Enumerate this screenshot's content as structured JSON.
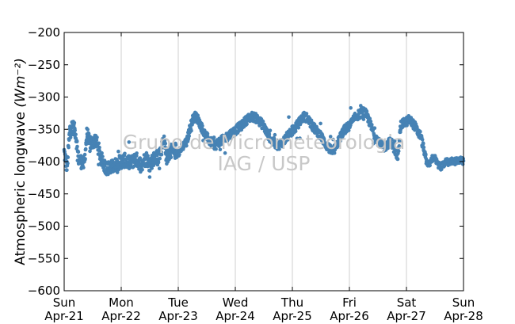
{
  "chart_data": {
    "type": "scatter",
    "ylabel": "Atmospheric longwave (Wm⁻²)",
    "ylabel_text": "Atmospheric longwave ",
    "ylabel_unit": "(Wm⁻²)",
    "watermark": [
      "Grupo de Micrometeorologia",
      "IAG / USP"
    ],
    "ylim": [
      -600,
      -200
    ],
    "xlim": [
      0,
      7
    ],
    "y_ticks": [
      -200,
      -250,
      -300,
      -350,
      -400,
      -450,
      -500,
      -550,
      -600
    ],
    "x_ticks": [
      {
        "x": 0,
        "day": "Sun",
        "date": "Apr-21"
      },
      {
        "x": 1,
        "day": "Mon",
        "date": "Apr-22"
      },
      {
        "x": 2,
        "day": "Tue",
        "date": "Apr-23"
      },
      {
        "x": 3,
        "day": "Wed",
        "date": "Apr-24"
      },
      {
        "x": 4,
        "day": "Thu",
        "date": "Apr-25"
      },
      {
        "x": 5,
        "day": "Fri",
        "date": "Apr-26"
      },
      {
        "x": 6,
        "day": "Sat",
        "date": "Apr-27"
      },
      {
        "x": 7,
        "day": "Sun",
        "date": "Apr-28"
      }
    ],
    "grid": "vertical",
    "series_color": "#4682b4",
    "trend": [
      [
        0.0,
        -385
      ],
      [
        0.05,
        -410
      ],
      [
        0.1,
        -350
      ],
      [
        0.15,
        -345
      ],
      [
        0.2,
        -355
      ],
      [
        0.25,
        -395
      ],
      [
        0.3,
        -400
      ],
      [
        0.35,
        -405
      ],
      [
        0.4,
        -355
      ],
      [
        0.45,
        -375
      ],
      [
        0.5,
        -370
      ],
      [
        0.55,
        -365
      ],
      [
        0.6,
        -380
      ],
      [
        0.65,
        -395
      ],
      [
        0.7,
        -405
      ],
      [
        0.75,
        -410
      ],
      [
        0.8,
        -410
      ],
      [
        0.85,
        -408
      ],
      [
        0.9,
        -405
      ],
      [
        0.95,
        -402
      ],
      [
        1.0,
        -400
      ],
      [
        1.05,
        -398
      ],
      [
        1.1,
        -400
      ],
      [
        1.15,
        -403
      ],
      [
        1.2,
        -400
      ],
      [
        1.25,
        -395
      ],
      [
        1.3,
        -400
      ],
      [
        1.35,
        -405
      ],
      [
        1.4,
        -398
      ],
      [
        1.45,
        -395
      ],
      [
        1.5,
        -405
      ],
      [
        1.55,
        -398
      ],
      [
        1.6,
        -392
      ],
      [
        1.65,
        -395
      ],
      [
        1.7,
        -380
      ],
      [
        1.75,
        -370
      ],
      [
        1.8,
        -395
      ],
      [
        1.85,
        -385
      ],
      [
        1.9,
        -380
      ],
      [
        1.95,
        -390
      ],
      [
        2.0,
        -385
      ],
      [
        2.05,
        -380
      ],
      [
        2.1,
        -375
      ],
      [
        2.15,
        -370
      ],
      [
        2.2,
        -350
      ],
      [
        2.25,
        -335
      ],
      [
        2.3,
        -330
      ],
      [
        2.35,
        -335
      ],
      [
        2.4,
        -345
      ],
      [
        2.45,
        -355
      ],
      [
        2.5,
        -362
      ],
      [
        2.55,
        -368
      ],
      [
        2.6,
        -372
      ],
      [
        2.65,
        -375
      ],
      [
        2.7,
        -370
      ],
      [
        2.75,
        -368
      ],
      [
        2.8,
        -365
      ],
      [
        2.85,
        -362
      ],
      [
        2.9,
        -358
      ],
      [
        2.95,
        -355
      ],
      [
        3.0,
        -352
      ],
      [
        3.05,
        -348
      ],
      [
        3.1,
        -345
      ],
      [
        3.15,
        -340
      ],
      [
        3.2,
        -335
      ],
      [
        3.25,
        -332
      ],
      [
        3.3,
        -330
      ],
      [
        3.35,
        -332
      ],
      [
        3.4,
        -335
      ],
      [
        3.45,
        -340
      ],
      [
        3.5,
        -345
      ],
      [
        3.55,
        -355
      ],
      [
        3.6,
        -362
      ],
      [
        3.65,
        -368
      ],
      [
        3.7,
        -372
      ],
      [
        3.75,
        -375
      ],
      [
        3.8,
        -372
      ],
      [
        3.85,
        -368
      ],
      [
        3.9,
        -362
      ],
      [
        3.95,
        -358
      ],
      [
        4.0,
        -352
      ],
      [
        4.05,
        -348
      ],
      [
        4.1,
        -342
      ],
      [
        4.15,
        -335
      ],
      [
        4.2,
        -330
      ],
      [
        4.25,
        -332
      ],
      [
        4.3,
        -338
      ],
      [
        4.35,
        -345
      ],
      [
        4.4,
        -350
      ],
      [
        4.45,
        -355
      ],
      [
        4.5,
        -360
      ],
      [
        4.55,
        -368
      ],
      [
        4.6,
        -375
      ],
      [
        4.65,
        -380
      ],
      [
        4.7,
        -385
      ],
      [
        4.75,
        -380
      ],
      [
        4.8,
        -370
      ],
      [
        4.85,
        -360
      ],
      [
        4.9,
        -352
      ],
      [
        4.95,
        -348
      ],
      [
        5.0,
        -345
      ],
      [
        5.05,
        -338
      ],
      [
        5.1,
        -332
      ],
      [
        5.15,
        -328
      ],
      [
        5.2,
        -325
      ],
      [
        5.25,
        -322
      ],
      [
        5.3,
        -328
      ],
      [
        5.35,
        -338
      ],
      [
        5.4,
        -350
      ],
      [
        5.45,
        -360
      ],
      [
        5.5,
        -368
      ],
      [
        5.55,
        -375
      ],
      [
        5.6,
        -378
      ],
      [
        5.65,
        -375
      ],
      [
        5.7,
        -370
      ],
      [
        5.75,
        -372
      ],
      [
        5.8,
        -385
      ],
      [
        5.85,
        -390
      ],
      [
        5.9,
        -345
      ],
      [
        5.95,
        -340
      ],
      [
        6.0,
        -338
      ],
      [
        6.05,
        -335
      ],
      [
        6.1,
        -340
      ],
      [
        6.15,
        -345
      ],
      [
        6.2,
        -355
      ],
      [
        6.25,
        -360
      ],
      [
        6.3,
        -380
      ],
      [
        6.35,
        -400
      ],
      [
        6.4,
        -405
      ],
      [
        6.45,
        -395
      ],
      [
        6.5,
        -395
      ],
      [
        6.55,
        -405
      ],
      [
        6.6,
        -408
      ],
      [
        6.65,
        -405
      ],
      [
        6.7,
        -400
      ],
      [
        6.75,
        -402
      ],
      [
        6.8,
        -398
      ],
      [
        6.85,
        -400
      ],
      [
        6.9,
        -398
      ],
      [
        6.95,
        -397
      ],
      [
        7.0,
        -396
      ]
    ]
  }
}
